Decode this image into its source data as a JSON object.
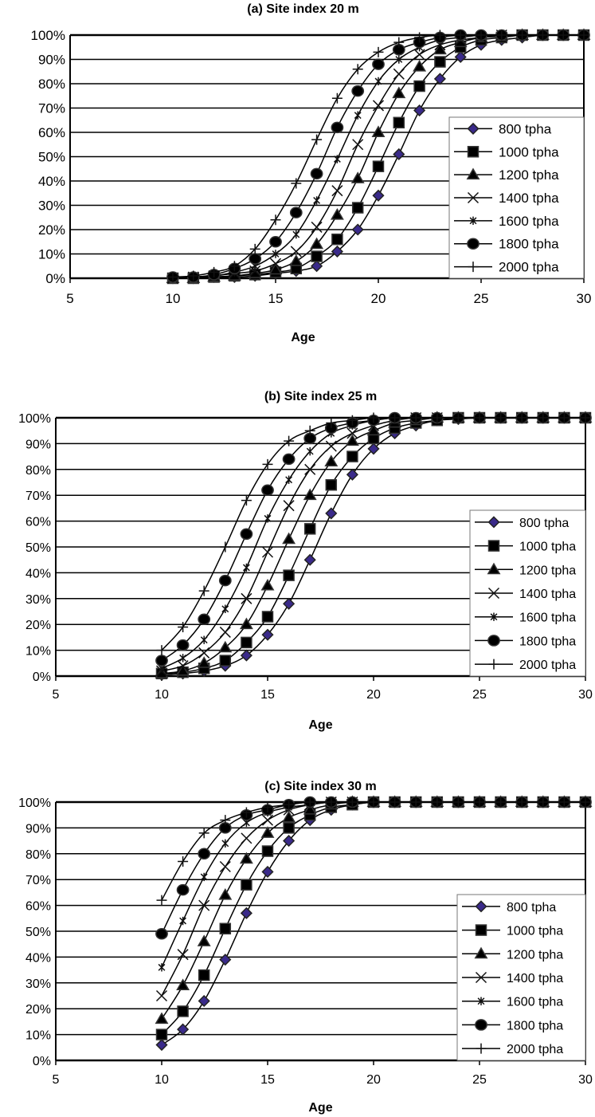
{
  "chart_data": [
    {
      "type": "line",
      "title": "(a) Site index 20 m",
      "xlabel": "Age",
      "ylabel": "",
      "xlim": [
        5,
        30
      ],
      "ylim": [
        0,
        100
      ],
      "x_ticks": [
        5,
        10,
        15,
        20,
        25,
        30
      ],
      "y_ticks": [
        "0%",
        "10%",
        "20%",
        "30%",
        "40%",
        "50%",
        "60%",
        "70%",
        "80%",
        "90%",
        "100%"
      ],
      "grid": "horizontal",
      "legend": "right",
      "x": [
        10,
        11,
        12,
        13,
        14,
        15,
        16,
        17,
        18,
        19,
        20,
        21,
        22,
        23,
        24,
        25,
        26,
        27,
        28,
        29,
        30
      ],
      "series": [
        {
          "name": "800 tpha",
          "marker": "diamond",
          "values": [
            0,
            0,
            0.5,
            0.5,
            1,
            2,
            3,
            5,
            11,
            20,
            34,
            51,
            69,
            82,
            91,
            96,
            98,
            99,
            100,
            100,
            100
          ]
        },
        {
          "name": "1000 tpha",
          "marker": "square",
          "values": [
            0,
            0,
            0.5,
            1,
            1.5,
            2.5,
            4,
            9,
            16,
            29,
            46,
            64,
            79,
            89,
            95,
            98,
            99,
            100,
            100,
            100,
            100
          ]
        },
        {
          "name": "1200 tpha",
          "marker": "triangle",
          "values": [
            0,
            0,
            0.5,
            1,
            2,
            3.5,
            7,
            14,
            26,
            41,
            60,
            76,
            87,
            94,
            97,
            99,
            99.5,
            100,
            100,
            100,
            100
          ]
        },
        {
          "name": "1400 tpha",
          "marker": "x",
          "values": [
            0,
            0.5,
            1,
            2,
            3,
            6,
            11,
            21,
            36,
            55,
            71,
            84,
            92,
            96,
            98,
            99,
            100,
            100,
            100,
            100,
            100
          ]
        },
        {
          "name": "1600 tpha",
          "marker": "star",
          "values": [
            0,
            0.5,
            1,
            2.5,
            5,
            10,
            18,
            32,
            49,
            67,
            81,
            90,
            95,
            98,
            99,
            100,
            100,
            100,
            100,
            100,
            100
          ]
        },
        {
          "name": "1800 tpha",
          "marker": "circle",
          "values": [
            0.5,
            0.5,
            1.5,
            4,
            8,
            15,
            27,
            43,
            62,
            77,
            88,
            94,
            97,
            99,
            100,
            100,
            100,
            100,
            100,
            100,
            100
          ]
        },
        {
          "name": "2000 tpha",
          "marker": "plus",
          "values": [
            0.5,
            1,
            2.5,
            5,
            12,
            24,
            39,
            57,
            74,
            86,
            93,
            97,
            99,
            100,
            100,
            100,
            100,
            100,
            100,
            100,
            100
          ]
        }
      ]
    },
    {
      "type": "line",
      "title": "(b) Site index 25 m",
      "xlabel": "Age",
      "ylabel": "",
      "xlim": [
        5,
        30
      ],
      "ylim": [
        0,
        100
      ],
      "x_ticks": [
        5,
        10,
        15,
        20,
        25,
        30
      ],
      "y_ticks": [
        "0%",
        "10%",
        "20%",
        "30%",
        "40%",
        "50%",
        "60%",
        "70%",
        "80%",
        "90%",
        "100%"
      ],
      "grid": "horizontal",
      "legend": "right",
      "x": [
        10,
        11,
        12,
        13,
        14,
        15,
        16,
        17,
        18,
        19,
        20,
        21,
        22,
        23,
        24,
        25,
        26,
        27,
        28,
        29,
        30
      ],
      "series": [
        {
          "name": "800 tpha",
          "marker": "diamond",
          "values": [
            0.5,
            1,
            2,
            4,
            8,
            16,
            28,
            45,
            63,
            78,
            88,
            94,
            97,
            99,
            99.5,
            100,
            100,
            100,
            100,
            100,
            100
          ]
        },
        {
          "name": "1000 tpha",
          "marker": "square",
          "values": [
            1,
            1.5,
            3,
            6,
            13,
            23,
            39,
            57,
            74,
            85,
            92,
            96,
            98,
            99,
            100,
            100,
            100,
            100,
            100,
            100,
            100
          ]
        },
        {
          "name": "1200 tpha",
          "marker": "triangle",
          "values": [
            1,
            2,
            5,
            11,
            20,
            35,
            53,
            70,
            83,
            91,
            95,
            98,
            99,
            100,
            100,
            100,
            100,
            100,
            100,
            100,
            100
          ]
        },
        {
          "name": "1400 tpha",
          "marker": "x",
          "values": [
            2,
            4,
            9,
            17,
            30,
            48,
            66,
            80,
            89,
            94,
            97,
            99,
            100,
            100,
            100,
            100,
            100,
            100,
            100,
            100,
            100
          ]
        },
        {
          "name": "1600 tpha",
          "marker": "star",
          "values": [
            3,
            7,
            14,
            26,
            42,
            61,
            76,
            87,
            94,
            97,
            99,
            100,
            100,
            100,
            100,
            100,
            100,
            100,
            100,
            100,
            100
          ]
        },
        {
          "name": "1800 tpha",
          "marker": "circle",
          "values": [
            6,
            12,
            22,
            37,
            55,
            72,
            84,
            92,
            96,
            98,
            99,
            100,
            100,
            100,
            100,
            100,
            100,
            100,
            100,
            100,
            100
          ]
        },
        {
          "name": "2000 tpha",
          "marker": "plus",
          "values": [
            10,
            19,
            33,
            50,
            68,
            82,
            91,
            95,
            98,
            99,
            100,
            100,
            100,
            100,
            100,
            100,
            100,
            100,
            100,
            100,
            100
          ]
        }
      ]
    },
    {
      "type": "line",
      "title": "(c) Site index 30 m",
      "xlabel": "Age",
      "ylabel": "",
      "xlim": [
        5,
        30
      ],
      "ylim": [
        0,
        100
      ],
      "x_ticks": [
        5,
        10,
        15,
        20,
        25,
        30
      ],
      "y_ticks": [
        "0%",
        "10%",
        "20%",
        "30%",
        "40%",
        "50%",
        "60%",
        "70%",
        "80%",
        "90%",
        "100%"
      ],
      "grid": "horizontal",
      "legend": "right",
      "x": [
        10,
        11,
        12,
        13,
        14,
        15,
        16,
        17,
        18,
        19,
        20,
        21,
        22,
        23,
        24,
        25,
        26,
        27,
        28,
        29,
        30
      ],
      "series": [
        {
          "name": "800 tpha",
          "marker": "diamond",
          "values": [
            6,
            12,
            23,
            39,
            57,
            73,
            85,
            93,
            97,
            99,
            100,
            100,
            100,
            100,
            100,
            100,
            100,
            100,
            100,
            100,
            100
          ]
        },
        {
          "name": "1000 tpha",
          "marker": "square",
          "values": [
            10,
            19,
            33,
            51,
            68,
            81,
            90,
            95,
            98,
            99,
            100,
            100,
            100,
            100,
            100,
            100,
            100,
            100,
            100,
            100,
            100
          ]
        },
        {
          "name": "1200 tpha",
          "marker": "triangle",
          "values": [
            16,
            29,
            46,
            64,
            78,
            88,
            94,
            97,
            99,
            100,
            100,
            100,
            100,
            100,
            100,
            100,
            100,
            100,
            100,
            100,
            100
          ]
        },
        {
          "name": "1400 tpha",
          "marker": "x",
          "values": [
            25,
            41,
            60,
            75,
            86,
            93,
            97,
            99,
            100,
            100,
            100,
            100,
            100,
            100,
            100,
            100,
            100,
            100,
            100,
            100,
            100
          ]
        },
        {
          "name": "1600 tpha",
          "marker": "star",
          "values": [
            36,
            54,
            71,
            84,
            92,
            96,
            98,
            99,
            100,
            100,
            100,
            100,
            100,
            100,
            100,
            100,
            100,
            100,
            100,
            100,
            100
          ]
        },
        {
          "name": "1800 tpha",
          "marker": "circle",
          "values": [
            49,
            66,
            80,
            90,
            95,
            97,
            99,
            100,
            100,
            100,
            100,
            100,
            100,
            100,
            100,
            100,
            100,
            100,
            100,
            100,
            100
          ]
        },
        {
          "name": "2000 tpha",
          "marker": "plus",
          "values": [
            62,
            77,
            88,
            93,
            96,
            98,
            99,
            100,
            100,
            100,
            100,
            100,
            100,
            100,
            100,
            100,
            100,
            100,
            100,
            100,
            100
          ]
        }
      ]
    }
  ],
  "colors": {
    "diamond_fill": "#3a2a8a",
    "marker": "#111111",
    "line": "#000000",
    "grid": "#000000"
  }
}
